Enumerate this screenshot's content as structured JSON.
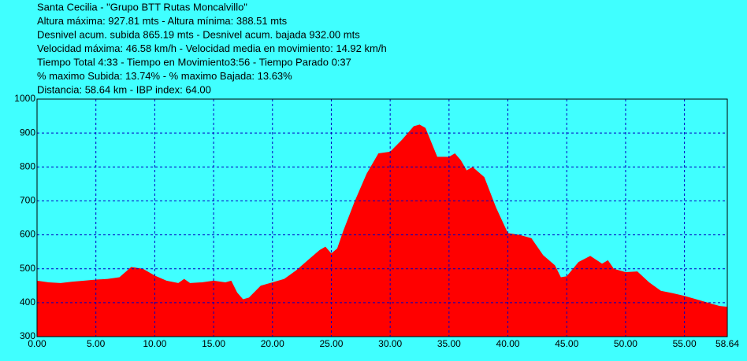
{
  "chart_data": {
    "type": "area",
    "info_lines": [
      "Santa Cecilia - \"Grupo BTT Rutas Moncalvillo\"",
      "Altura máxima: 927.81 mts - Altura mínima: 388.51 mts",
      "Desnivel acum. subida 865.19 mts - Desnivel acum. bajada 932.00 mts",
      "Velocidad máxima: 46.58 km/h - Velocidad media en movimiento: 14.92 km/h",
      "Tiempo Total 4:33 - Tiempo en Movimiento3:56 -  Tiempo Parado 0:37",
      "% maximo Subida: 13.74% -  % maximo Bajada: 13.63%",
      "Distancia: 58.64 km -  IBP index: 64.00"
    ],
    "x": [
      0,
      1,
      2,
      3,
      4,
      5,
      6,
      7,
      8,
      9,
      10,
      11,
      12,
      12.5,
      13,
      14,
      15,
      16,
      16.5,
      17,
      17.5,
      18,
      19,
      20,
      21,
      22,
      23,
      24,
      24.5,
      25,
      25.5,
      26,
      27,
      28,
      29,
      30,
      31,
      32,
      32.5,
      33,
      34,
      35,
      35.5,
      36,
      36.5,
      37,
      38,
      39,
      40,
      41,
      42,
      43,
      44,
      44.5,
      45,
      46,
      47,
      48,
      48.5,
      49,
      50,
      51,
      52,
      53,
      54,
      55,
      56,
      57,
      58,
      58.64
    ],
    "values": [
      465,
      460,
      458,
      462,
      465,
      468,
      470,
      475,
      505,
      500,
      480,
      465,
      458,
      470,
      458,
      460,
      465,
      460,
      465,
      430,
      410,
      415,
      450,
      460,
      470,
      495,
      525,
      555,
      565,
      545,
      560,
      610,
      700,
      780,
      840,
      845,
      880,
      920,
      925,
      915,
      830,
      830,
      840,
      820,
      790,
      800,
      770,
      680,
      605,
      600,
      590,
      540,
      510,
      475,
      478,
      520,
      538,
      515,
      525,
      500,
      490,
      492,
      460,
      435,
      428,
      420,
      410,
      400,
      390,
      388
    ],
    "color": "#ff0000",
    "background": "#40ffff",
    "grid_color": "#0000c0",
    "grid": true,
    "xlim": [
      0,
      58.64
    ],
    "ylim": [
      300,
      1000
    ],
    "xticks": [
      {
        "value": 0,
        "label": "0.00"
      },
      {
        "value": 5,
        "label": "5.00"
      },
      {
        "value": 10,
        "label": "10.00"
      },
      {
        "value": 15,
        "label": "15.00"
      },
      {
        "value": 20,
        "label": "20.00"
      },
      {
        "value": 25,
        "label": "25.00"
      },
      {
        "value": 30,
        "label": "30.00"
      },
      {
        "value": 35,
        "label": "35.00"
      },
      {
        "value": 40,
        "label": "40.00"
      },
      {
        "value": 45,
        "label": "45.00"
      },
      {
        "value": 50,
        "label": "50.00"
      },
      {
        "value": 55,
        "label": "55.00"
      },
      {
        "value": 58.64,
        "label": "58.64"
      }
    ],
    "yticks": [
      300,
      400,
      500,
      600,
      700,
      800,
      900,
      1000
    ]
  }
}
